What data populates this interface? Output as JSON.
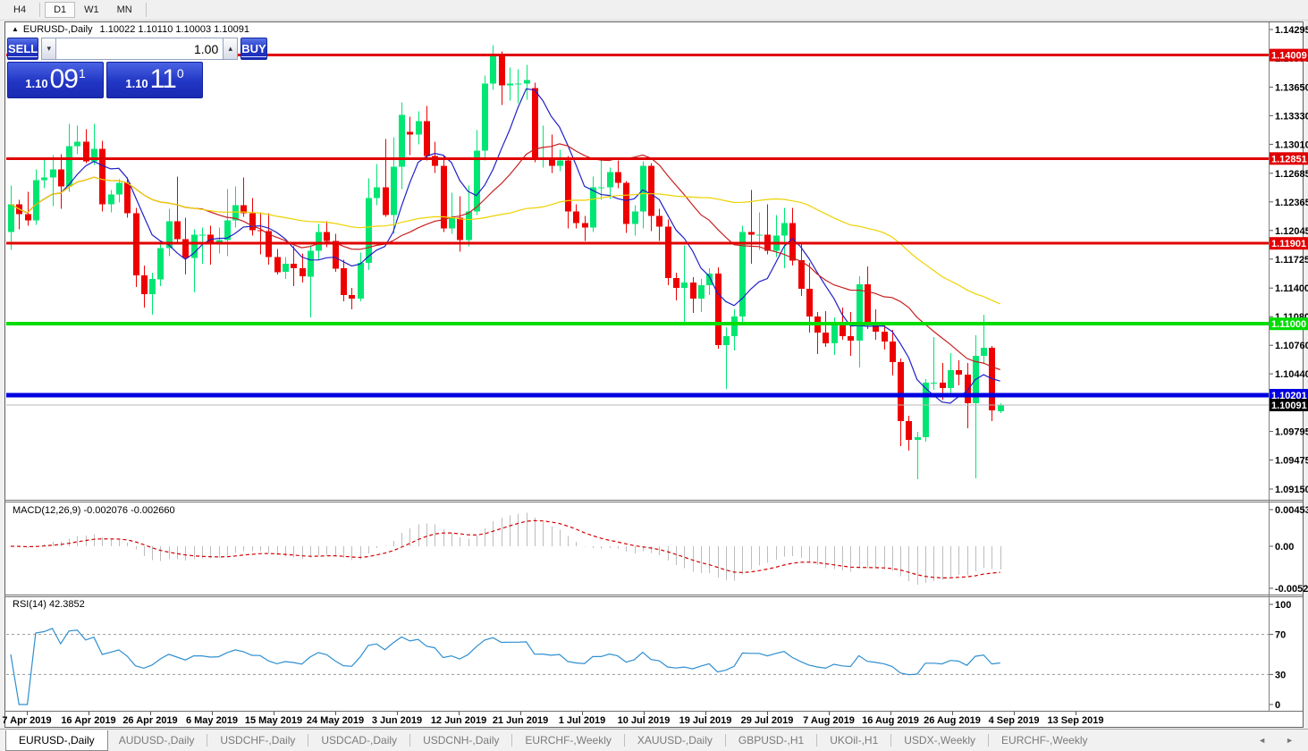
{
  "toolbar": {
    "timeframes": [
      {
        "label": "H4",
        "active": false
      },
      {
        "label": "D1",
        "active": true
      },
      {
        "label": "W1",
        "active": false
      },
      {
        "label": "MN",
        "active": false
      }
    ]
  },
  "window_title": {
    "collapse_glyph": "▲",
    "symbol": "EURUSD-,Daily",
    "ohlc": "1.10022 1.10110 1.10003 1.10091"
  },
  "trade_panel": {
    "sell_label": "SELL",
    "buy_label": "BUY",
    "volume": "1.00",
    "spin_down_glyph": "▾",
    "spin_up_glyph": "▴",
    "sell_price": {
      "small": "1.10",
      "big": "09",
      "sup": "1"
    },
    "buy_price": {
      "small": "1.10",
      "big": "11",
      "sup": "0"
    }
  },
  "chart_data": {
    "type": "candlestick",
    "symbol": "EURUSD-",
    "timeframe": "Daily",
    "ohlc_display": "1.10022 1.10110 1.10003 1.10091",
    "current_price": 1.10091,
    "price_axis_ticks": [
      1.14295,
      1.13975,
      1.1365,
      1.1333,
      1.1301,
      1.12685,
      1.12365,
      1.12045,
      1.11725,
      1.114,
      1.1108,
      1.1076,
      1.1044,
      1.1012,
      1.09795,
      1.09475,
      1.0915
    ],
    "levels": [
      {
        "value": 1.14009,
        "color": "#E00000",
        "width": 3
      },
      {
        "value": 1.12851,
        "color": "#E00000",
        "width": 3
      },
      {
        "value": 1.11901,
        "color": "#E00000",
        "width": 3
      },
      {
        "value": 1.11,
        "color": "#00DC00",
        "width": 4
      },
      {
        "value": 1.10201,
        "color": "#0000E0",
        "width": 5
      }
    ],
    "moving_averages": [
      {
        "period": 7,
        "color": "#2020C8"
      },
      {
        "period": 21,
        "color": "#C82020"
      },
      {
        "period": 50,
        "color": "#EED200"
      }
    ],
    "indicators": [
      {
        "name": "MACD",
        "label": "MACD(12,26,9) -0.002076 -0.002660",
        "values_display": [
          "-0.002076",
          "-0.002660"
        ],
        "scale_ticks": [
          "0.004536",
          "0.00",
          "-0.005205"
        ]
      },
      {
        "name": "RSI",
        "label": "RSI(14) 42.3852",
        "value_display": "42.3852",
        "scale_ticks": [
          "100",
          "70",
          "30",
          "0"
        ],
        "levels": [
          70,
          30
        ]
      }
    ],
    "date_labels": [
      "7 Apr 2019",
      "16 Apr 2019",
      "26 Apr 2019",
      "6 May 2019",
      "15 May 2019",
      "24 May 2019",
      "3 Jun 2019",
      "12 Jun 2019",
      "21 Jun 2019",
      "1 Jul 2019",
      "10 Jul 2019",
      "19 Jul 2019",
      "29 Jul 2019",
      "7 Aug 2019",
      "16 Aug 2019",
      "26 Aug 2019",
      "4 Sep 2019",
      "13 Sep 2019"
    ],
    "colors": {
      "bull": "#00E673",
      "bear": "#EE0000",
      "macd_hist": "#BDBDBD",
      "macd_signal": "#D40000",
      "rsi": "#2F8FD0"
    },
    "candles": [
      [
        1.1203,
        1.1255,
        1.1183,
        1.1234
      ],
      [
        1.1234,
        1.1239,
        1.1206,
        1.1223
      ],
      [
        1.1223,
        1.1248,
        1.121,
        1.1216
      ],
      [
        1.1216,
        1.1273,
        1.1211,
        1.1261
      ],
      [
        1.1261,
        1.1285,
        1.1252,
        1.1264
      ],
      [
        1.1264,
        1.1289,
        1.1232,
        1.1273
      ],
      [
        1.1273,
        1.129,
        1.1229,
        1.1254
      ],
      [
        1.1254,
        1.1324,
        1.1248,
        1.1299
      ],
      [
        1.1299,
        1.1322,
        1.129,
        1.1304
      ],
      [
        1.1304,
        1.1318,
        1.128,
        1.1282
      ],
      [
        1.1282,
        1.1324,
        1.1278,
        1.1296
      ],
      [
        1.1296,
        1.1305,
        1.1226,
        1.1234
      ],
      [
        1.1234,
        1.125,
        1.1225,
        1.1245
      ],
      [
        1.1245,
        1.1262,
        1.1236,
        1.1258
      ],
      [
        1.1258,
        1.1264,
        1.1219,
        1.1224
      ],
      [
        1.1224,
        1.123,
        1.1141,
        1.1154
      ],
      [
        1.1154,
        1.1165,
        1.1118,
        1.1133
      ],
      [
        1.1133,
        1.1157,
        1.111,
        1.115
      ],
      [
        1.115,
        1.119,
        1.1142,
        1.1185
      ],
      [
        1.1185,
        1.1229,
        1.1176,
        1.1215
      ],
      [
        1.1215,
        1.1265,
        1.1189,
        1.1195
      ],
      [
        1.1195,
        1.1219,
        1.1155,
        1.1174
      ],
      [
        1.1174,
        1.1206,
        1.1135,
        1.12
      ],
      [
        1.12,
        1.1208,
        1.1167,
        1.12
      ],
      [
        1.12,
        1.121,
        1.1166,
        1.1192
      ],
      [
        1.1192,
        1.1208,
        1.1179,
        1.1194
      ],
      [
        1.1194,
        1.1251,
        1.1176,
        1.1216
      ],
      [
        1.1216,
        1.1254,
        1.1208,
        1.1233
      ],
      [
        1.1233,
        1.1264,
        1.122,
        1.1224
      ],
      [
        1.1224,
        1.1241,
        1.1199,
        1.1205
      ],
      [
        1.1205,
        1.1225,
        1.1178,
        1.1204
      ],
      [
        1.1204,
        1.1224,
        1.1166,
        1.1175
      ],
      [
        1.1175,
        1.1184,
        1.1155,
        1.1158
      ],
      [
        1.1158,
        1.1175,
        1.115,
        1.1167
      ],
      [
        1.1167,
        1.1187,
        1.1142,
        1.1162
      ],
      [
        1.1162,
        1.1179,
        1.1146,
        1.1153
      ],
      [
        1.1153,
        1.1188,
        1.1107,
        1.1182
      ],
      [
        1.1182,
        1.1212,
        1.1171,
        1.1203
      ],
      [
        1.1203,
        1.1215,
        1.1186,
        1.1193
      ],
      [
        1.1193,
        1.1201,
        1.1158,
        1.1162
      ],
      [
        1.1162,
        1.1172,
        1.1125,
        1.1132
      ],
      [
        1.1132,
        1.114,
        1.1116,
        1.1128
      ],
      [
        1.1128,
        1.118,
        1.1125,
        1.1168
      ],
      [
        1.1168,
        1.1263,
        1.116,
        1.1241
      ],
      [
        1.1241,
        1.1279,
        1.1233,
        1.1253
      ],
      [
        1.1253,
        1.1307,
        1.122,
        1.1222
      ],
      [
        1.1222,
        1.1309,
        1.1201,
        1.1276
      ],
      [
        1.1276,
        1.1348,
        1.1251,
        1.1334
      ],
      [
        1.1315,
        1.1332,
        1.1289,
        1.1312
      ],
      [
        1.1312,
        1.1338,
        1.1301,
        1.1327
      ],
      [
        1.1327,
        1.1344,
        1.1283,
        1.1288
      ],
      [
        1.1288,
        1.1304,
        1.1269,
        1.1277
      ],
      [
        1.1277,
        1.1289,
        1.1203,
        1.1207
      ],
      [
        1.1207,
        1.1247,
        1.1201,
        1.1219
      ],
      [
        1.1219,
        1.1243,
        1.1181,
        1.1194
      ],
      [
        1.1194,
        1.1255,
        1.1187,
        1.1226
      ],
      [
        1.1226,
        1.1317,
        1.1222,
        1.1294
      ],
      [
        1.1294,
        1.1378,
        1.1283,
        1.1369
      ],
      [
        1.1369,
        1.1412,
        1.1362,
        1.14
      ],
      [
        1.14,
        1.1405,
        1.1345,
        1.1367
      ],
      [
        1.1367,
        1.1387,
        1.135,
        1.1369
      ],
      [
        1.1369,
        1.1385,
        1.1347,
        1.1369
      ],
      [
        1.1369,
        1.139,
        1.1351,
        1.1373
      ],
      [
        1.1364,
        1.137,
        1.1281,
        1.1285
      ],
      [
        1.1285,
        1.1322,
        1.1275,
        1.1286
      ],
      [
        1.1286,
        1.1312,
        1.1269,
        1.1277
      ],
      [
        1.1277,
        1.1295,
        1.1271,
        1.1283
      ],
      [
        1.1283,
        1.1288,
        1.1207,
        1.1226
      ],
      [
        1.1226,
        1.1234,
        1.1207,
        1.1213
      ],
      [
        1.1213,
        1.1221,
        1.1193,
        1.1208
      ],
      [
        1.1208,
        1.1265,
        1.1203,
        1.1253
      ],
      [
        1.1253,
        1.1286,
        1.1239,
        1.1253
      ],
      [
        1.1253,
        1.1275,
        1.124,
        1.127
      ],
      [
        1.127,
        1.1283,
        1.1252,
        1.1258
      ],
      [
        1.1258,
        1.126,
        1.1202,
        1.1212
      ],
      [
        1.1212,
        1.1233,
        1.1199,
        1.1226
      ],
      [
        1.1226,
        1.1282,
        1.1207,
        1.1277
      ],
      [
        1.1277,
        1.128,
        1.1204,
        1.1221
      ],
      [
        1.1221,
        1.1229,
        1.1193,
        1.1209
      ],
      [
        1.1209,
        1.1217,
        1.1143,
        1.1151
      ],
      [
        1.1151,
        1.1157,
        1.1126,
        1.114
      ],
      [
        1.114,
        1.1188,
        1.1101,
        1.1146
      ],
      [
        1.1146,
        1.1152,
        1.1112,
        1.1128
      ],
      [
        1.1128,
        1.115,
        1.1113,
        1.1143
      ],
      [
        1.1143,
        1.1162,
        1.1132,
        1.1156
      ],
      [
        1.1156,
        1.1163,
        1.1072,
        1.1076
      ],
      [
        1.1076,
        1.1096,
        1.1027,
        1.1086
      ],
      [
        1.1086,
        1.1116,
        1.107,
        1.1108
      ],
      [
        1.1108,
        1.121,
        1.1101,
        1.1203
      ],
      [
        1.1203,
        1.125,
        1.1167,
        1.12
      ],
      [
        1.12,
        1.1225,
        1.1183,
        1.12
      ],
      [
        1.12,
        1.1234,
        1.1178,
        1.1182
      ],
      [
        1.1182,
        1.1222,
        1.1175,
        1.1199
      ],
      [
        1.1199,
        1.123,
        1.1162,
        1.1213
      ],
      [
        1.1213,
        1.123,
        1.1165,
        1.1171
      ],
      [
        1.1171,
        1.1189,
        1.1131,
        1.1139
      ],
      [
        1.1139,
        1.1168,
        1.109,
        1.1108
      ],
      [
        1.1108,
        1.1113,
        1.1066,
        1.109
      ],
      [
        1.109,
        1.1114,
        1.1074,
        1.1078
      ],
      [
        1.1078,
        1.1107,
        1.1065,
        1.11
      ],
      [
        1.11,
        1.1118,
        1.1082,
        1.1086
      ],
      [
        1.1086,
        1.1113,
        1.1064,
        1.1081
      ],
      [
        1.1081,
        1.1153,
        1.1051,
        1.1144
      ],
      [
        1.1144,
        1.1164,
        1.1094,
        1.1101
      ],
      [
        1.1101,
        1.1116,
        1.1082,
        1.1091
      ],
      [
        1.1091,
        1.1098,
        1.1071,
        1.108
      ],
      [
        1.108,
        1.1093,
        1.1042,
        1.1057
      ],
      [
        1.1057,
        1.1061,
        1.0963,
        1.0991
      ],
      [
        1.0991,
        1.0997,
        1.0958,
        1.097
      ],
      [
        1.097,
        1.0979,
        1.0926,
        1.0973
      ],
      [
        1.0973,
        1.1038,
        1.0968,
        1.1034
      ],
      [
        1.1034,
        1.1085,
        1.1026,
        1.1034
      ],
      [
        1.1034,
        1.1056,
        1.1015,
        1.1028
      ],
      [
        1.1028,
        1.1067,
        1.1021,
        1.1048
      ],
      [
        1.1048,
        1.1059,
        1.1031,
        1.1043
      ],
      [
        1.1043,
        1.1056,
        1.0983,
        1.1011
      ],
      [
        1.1011,
        1.1087,
        1.0927,
        1.1064
      ],
      [
        1.1064,
        1.111,
        1.1055,
        1.1073
      ],
      [
        1.1073,
        1.1075,
        1.0991,
        1.1003
      ],
      [
        1.10022,
        1.1011,
        1.10003,
        1.10091
      ]
    ]
  },
  "tabbar": {
    "prev_glyph": "◄",
    "next_glyph": "►",
    "tabs": [
      {
        "label": "EURUSD-,Daily",
        "active": true
      },
      {
        "label": "AUDUSD-,Daily",
        "active": false
      },
      {
        "label": "USDCHF-,Daily",
        "active": false
      },
      {
        "label": "USDCAD-,Daily",
        "active": false
      },
      {
        "label": "USDCNH-,Daily",
        "active": false
      },
      {
        "label": "EURCHF-,Weekly",
        "active": false
      },
      {
        "label": "XAUUSD-,Daily",
        "active": false
      },
      {
        "label": "GBPUSD-,H1",
        "active": false
      },
      {
        "label": "UKOil-,H1",
        "active": false
      },
      {
        "label": "USDX-,Weekly",
        "active": false
      },
      {
        "label": "EURCHF-,Weekly",
        "active": false
      }
    ]
  }
}
